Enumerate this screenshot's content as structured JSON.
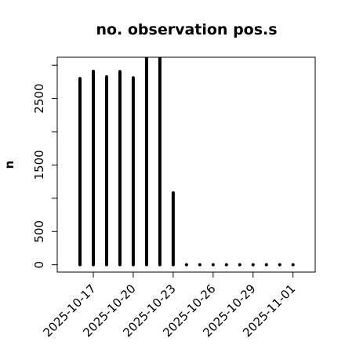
{
  "chart_data": {
    "type": "bar",
    "title": "no. observation pos.s",
    "y_label": "n",
    "x": [
      "2025-10-16",
      "2025-10-17",
      "2025-10-18",
      "2025-10-19",
      "2025-10-20",
      "2025-10-21",
      "2025-10-22",
      "2025-10-23",
      "2025-10-24",
      "2025-10-25",
      "2025-10-26",
      "2025-10-27",
      "2025-10-28",
      "2025-10-29",
      "2025-10-30",
      "2025-10-31",
      "2025-11-01"
    ],
    "values": [
      2800,
      2910,
      2825,
      2905,
      2810,
      3200,
      3200,
      1080,
      0,
      0,
      0,
      0,
      0,
      0,
      0,
      0,
      0
    ],
    "color": "#000000",
    "xlim": [
      "2025-10-14T07:00",
      "2025-11-02T16:00"
    ],
    "xticks": [
      "2025-10-17",
      "2025-10-20",
      "2025-10-23",
      "2025-10-26",
      "2025-10-29",
      "2025-11-01"
    ],
    "highlight_tick_index": 2,
    "highlight_color": "#228b22",
    "ylim": [
      -110,
      3120
    ],
    "yticks": [
      0,
      500,
      {
        "value": 1000,
        "label": null
      },
      1500,
      {
        "value": 2000,
        "label": null
      },
      2500,
      {
        "value": 3000,
        "label": null
      }
    ]
  }
}
